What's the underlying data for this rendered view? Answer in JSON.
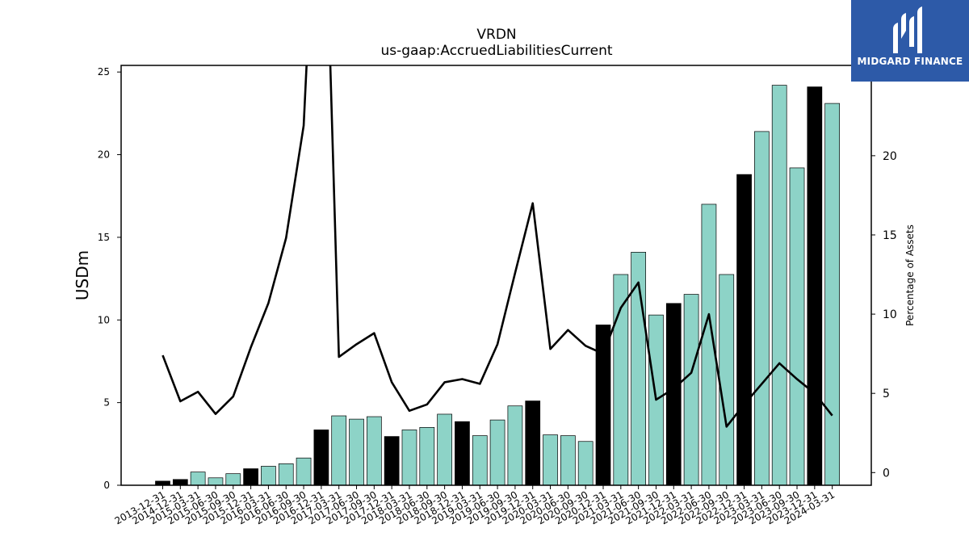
{
  "chart_data": {
    "type": "bar",
    "title": "VRDN",
    "subtitle": "us-gaap:AccruedLiabilitiesCurrent",
    "ylabel": "USDm",
    "y2label": "Percentage of Assets",
    "ylim": [
      0,
      25.4
    ],
    "y2lim": [
      -0.8,
      25.7
    ],
    "yticks": [
      0,
      5,
      10,
      15,
      20,
      25
    ],
    "y2ticks": [
      0,
      5,
      10,
      15,
      20
    ],
    "categories": [
      "2013-12-31",
      "2014-12-31",
      "2015-03-31",
      "2015-06-30",
      "2015-09-30",
      "2015-12-31",
      "2016-03-31",
      "2016-06-30",
      "2016-09-30",
      "2016-12-31",
      "2017-03-31",
      "2017-06-30",
      "2017-09-30",
      "2017-12-31",
      "2018-03-31",
      "2018-06-30",
      "2018-09-30",
      "2018-12-31",
      "2019-03-31",
      "2019-06-30",
      "2019-09-30",
      "2019-12-31",
      "2020-03-31",
      "2020-06-30",
      "2020-09-30",
      "2020-12-31",
      "2021-03-31",
      "2021-06-30",
      "2021-09-30",
      "2021-12-31",
      "2022-03-31",
      "2022-06-30",
      "2022-09-30",
      "2022-12-31",
      "2023-03-31",
      "2023-06-30",
      "2023-09-30",
      "2023-12-31",
      "2024-03-31"
    ],
    "series": [
      {
        "type": "bar",
        "values": [
          0.25,
          0.35,
          0.8,
          0.45,
          0.7,
          1.0,
          1.15,
          1.3,
          1.65,
          3.35,
          4.2,
          4.0,
          4.15,
          2.95,
          3.35,
          3.5,
          4.3,
          3.85,
          3.0,
          3.95,
          4.8,
          5.1,
          3.05,
          3.0,
          2.65,
          9.7,
          12.75,
          14.1,
          10.3,
          11.0,
          11.55,
          17.0,
          12.75,
          18.8,
          21.4,
          24.2,
          19.2,
          24.1,
          23.1
        ],
        "year_end": [
          true,
          true,
          false,
          false,
          false,
          true,
          false,
          false,
          false,
          true,
          false,
          false,
          false,
          true,
          false,
          false,
          false,
          true,
          false,
          false,
          false,
          true,
          false,
          false,
          false,
          true,
          false,
          false,
          false,
          true,
          false,
          false,
          false,
          true,
          false,
          false,
          false,
          true,
          false
        ]
      },
      {
        "type": "line",
        "axis": "right",
        "values": [
          7.4,
          4.5,
          5.1,
          3.7,
          4.8,
          7.9,
          10.7,
          14.8,
          21.9,
          45,
          7.3,
          8.1,
          8.8,
          5.7,
          3.9,
          4.3,
          5.7,
          5.9,
          5.6,
          8.1,
          12.6,
          17.0,
          7.8,
          9.0,
          8.0,
          7.5,
          10.4,
          12.0,
          4.6,
          5.3,
          6.3,
          10.0,
          2.9,
          4.3,
          5.6,
          6.9,
          5.9,
          5.0,
          3.6
        ]
      }
    ],
    "colors": {
      "bar_default": "#8dd3c7",
      "bar_year_end": "#000000",
      "bar_edge": "#000000",
      "line": "#000000"
    }
  },
  "logo": {
    "name": "MIDGARD FINANCE",
    "background": "#2d5aa8"
  }
}
